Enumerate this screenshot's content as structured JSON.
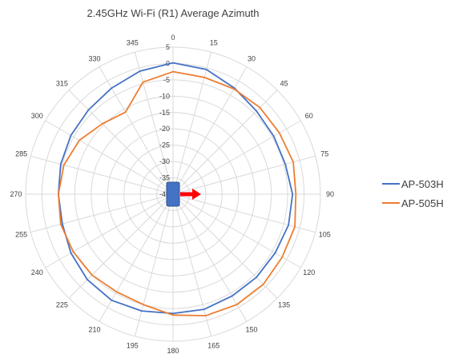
{
  "chart_data": {
    "type": "radar",
    "title": "2.45GHz Wi-Fi (R1) Average Azimuth",
    "angle_unit": "degrees",
    "angles": [
      0,
      15,
      30,
      45,
      60,
      75,
      90,
      105,
      120,
      135,
      150,
      165,
      180,
      195,
      210,
      225,
      240,
      255,
      270,
      285,
      300,
      315,
      330,
      345
    ],
    "angle_labels": [
      "0",
      "15",
      "30",
      "45",
      "60",
      "75",
      "90",
      "105",
      "120",
      "135",
      "150",
      "165",
      "180",
      "195",
      "210",
      "225",
      "240",
      "255",
      "270",
      "285",
      "300",
      "315",
      "330",
      "345"
    ],
    "radial_ticks": [
      "5",
      "0",
      "-5",
      "-10",
      "-15",
      "-20",
      "-25",
      "-30",
      "-35",
      "-40"
    ],
    "rlim": [
      -40,
      5
    ],
    "series": [
      {
        "name": "AP-503H",
        "color": "#4472C4",
        "values": [
          0.2,
          -0.5,
          -2.5,
          -4.0,
          -4.5,
          -4.5,
          -3.5,
          -3.5,
          -4.0,
          -4.0,
          -4.0,
          -3.5,
          -3.5,
          -3.0,
          -2.5,
          -3.0,
          -4.0,
          -5.0,
          -5.0,
          -4.5,
          -4.0,
          -3.5,
          -2.5,
          -1.0
        ]
      },
      {
        "name": "AP-505H",
        "color": "#ED7D31",
        "values": [
          -2.5,
          -3.0,
          -2.8,
          -2.5,
          -2.5,
          -2.0,
          -2.5,
          -1.5,
          -1.5,
          -1.0,
          -1.0,
          -1.5,
          -3.0,
          -5.0,
          -5.5,
          -5.0,
          -4.8,
          -4.5,
          -5.0,
          -5.5,
          -7.0,
          -9.5,
          -11.0,
          -4.5
        ]
      }
    ],
    "grid": true,
    "legend": "right",
    "annotations": [
      {
        "type": "device-icon",
        "color": "#4472C4",
        "position": "center"
      },
      {
        "type": "arrow",
        "color": "#FF0000",
        "direction": "90"
      }
    ]
  }
}
